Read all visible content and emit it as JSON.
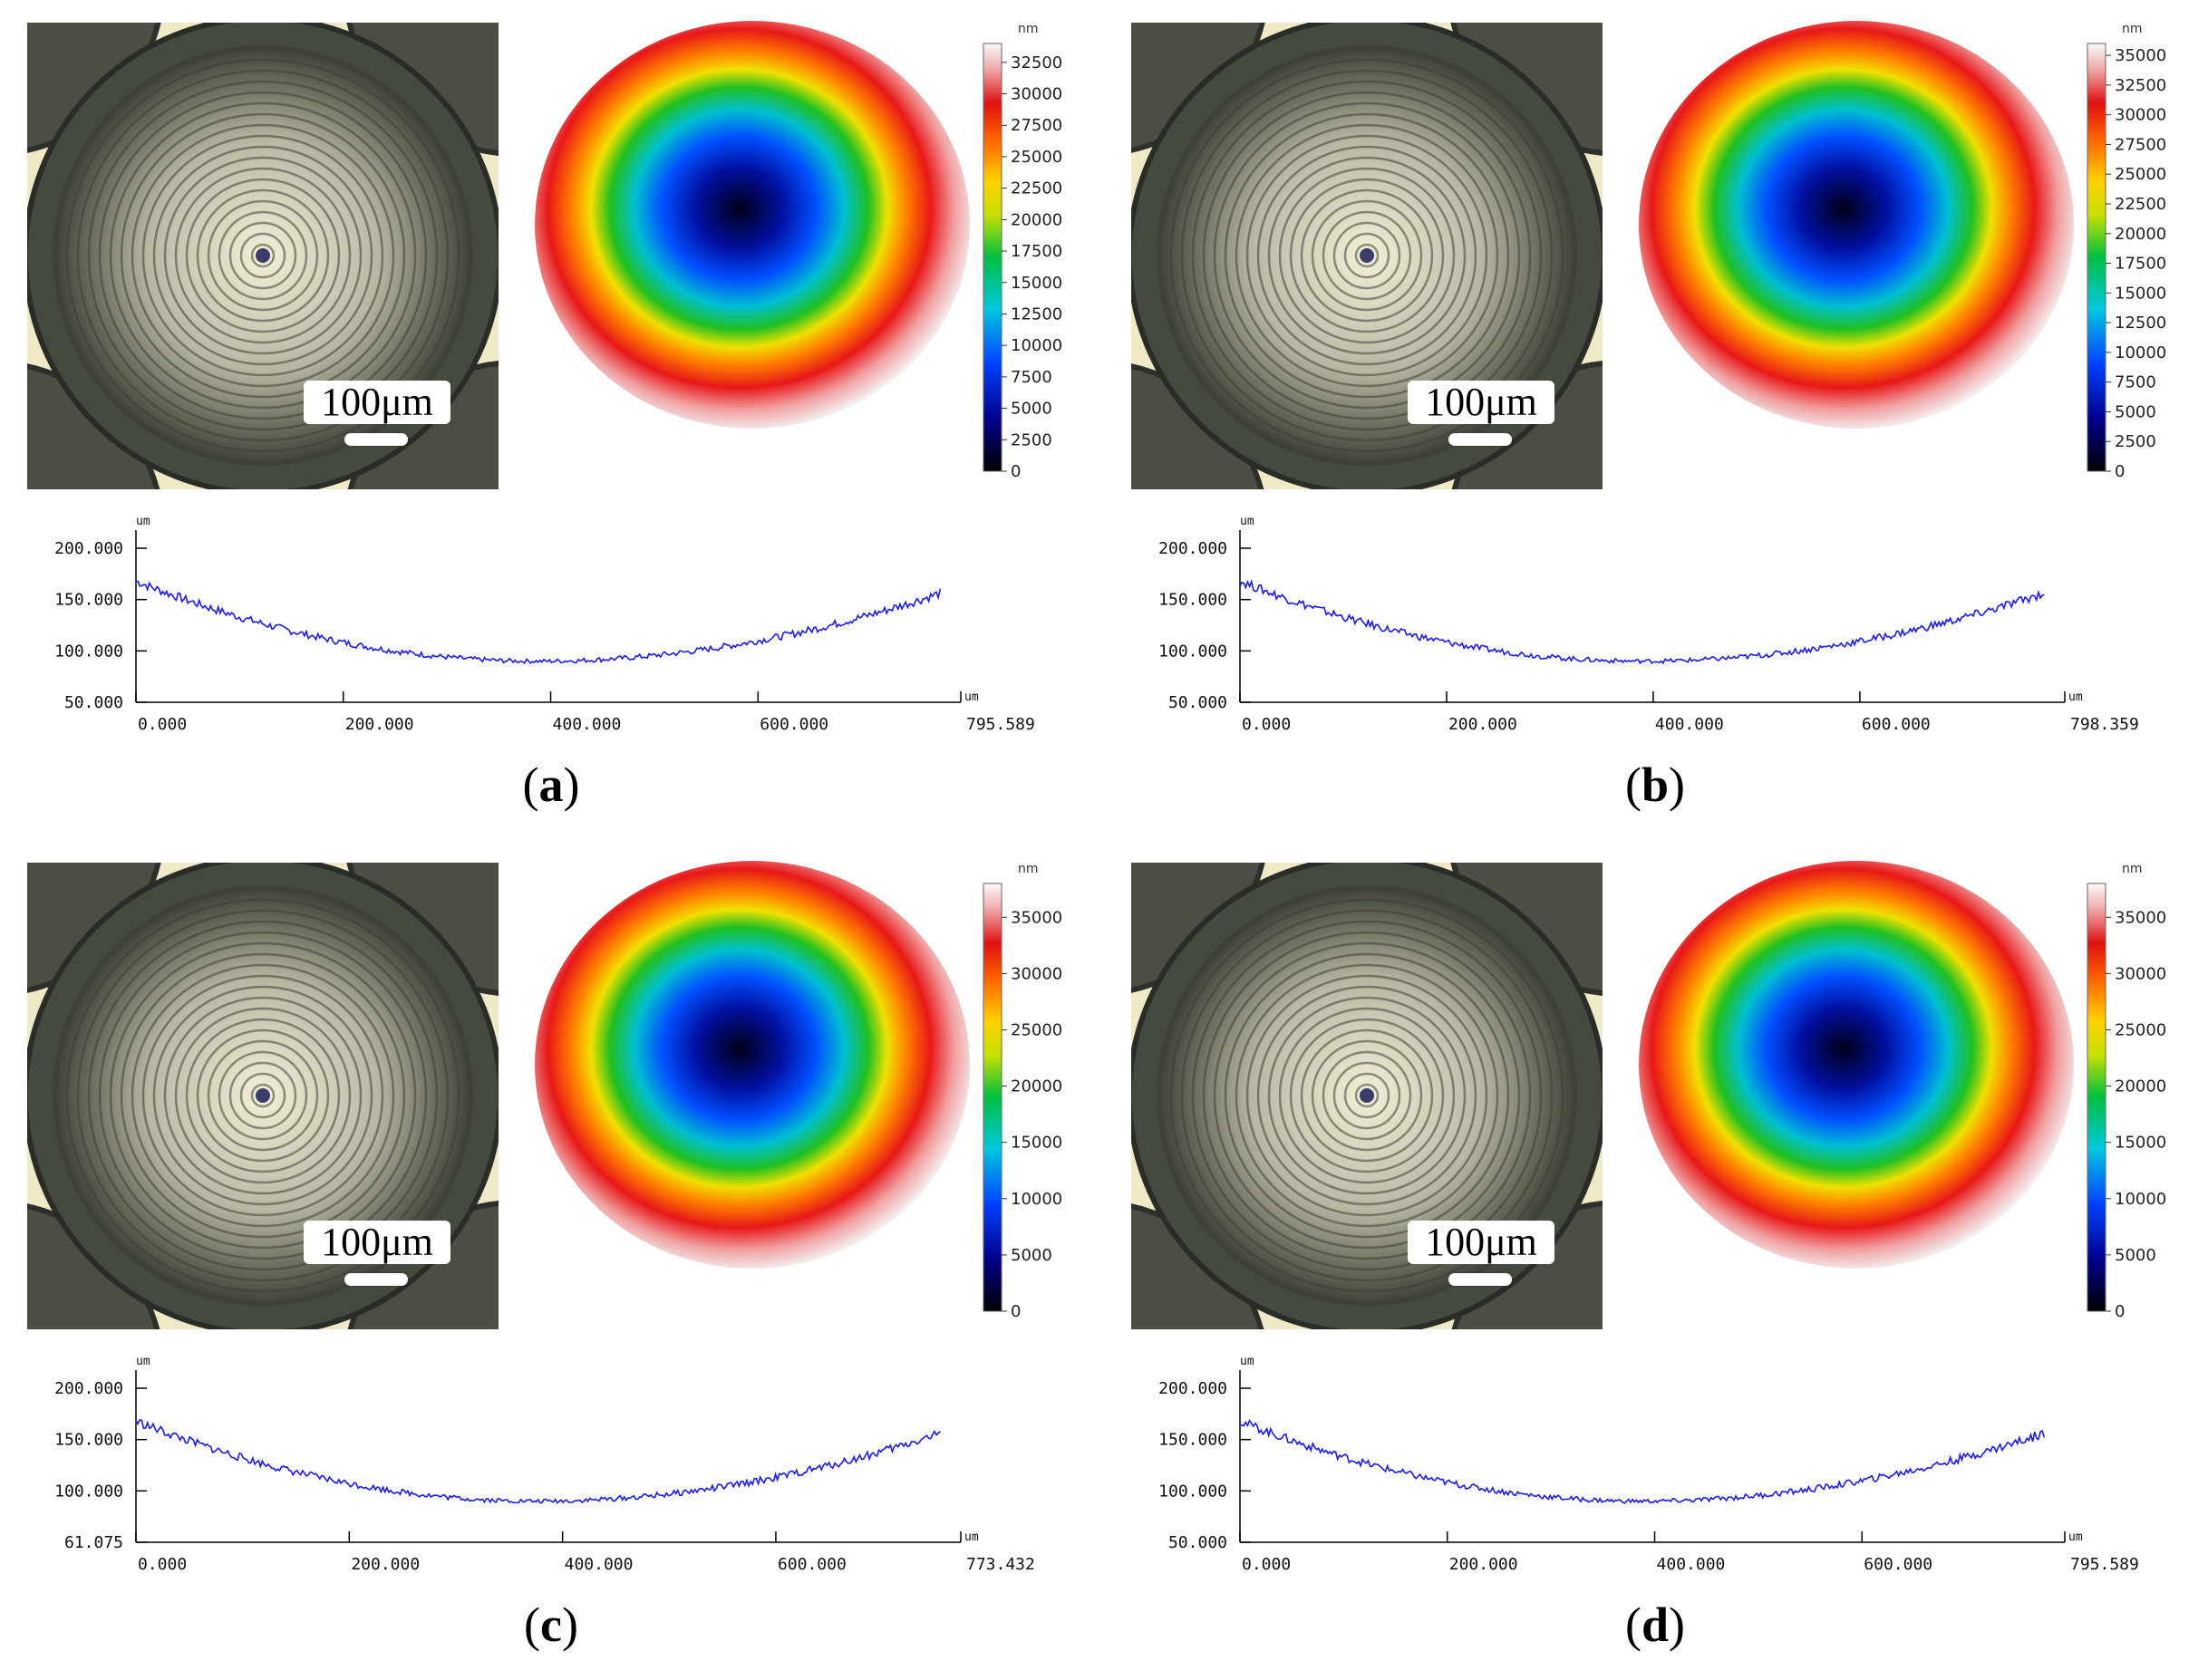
{
  "panels": [
    {
      "label": "a",
      "scale_label": "100μm",
      "colorbar": {
        "unit": "nm",
        "min": 0,
        "max": 34000,
        "ticks": [
          "0",
          "2500",
          "5000",
          "7500",
          "10000",
          "12500",
          "15000",
          "17500",
          "20000",
          "22500",
          "25000",
          "27500",
          "30000",
          "32500"
        ]
      },
      "profile": {
        "y_unit": "um",
        "x_unit": "um",
        "y_ticks": [
          "50.000",
          "100.000",
          "150.000",
          "200.000"
        ],
        "x_ticks": [
          "0.000",
          "200.000",
          "400.000",
          "600.000"
        ],
        "x_end": "795.589"
      }
    },
    {
      "label": "b",
      "scale_label": "100μm",
      "colorbar": {
        "unit": "nm",
        "min": 0,
        "max": 36000,
        "ticks": [
          "0",
          "2500",
          "5000",
          "7500",
          "10000",
          "12500",
          "15000",
          "17500",
          "20000",
          "22500",
          "25000",
          "27500",
          "30000",
          "32500",
          "35000"
        ]
      },
      "profile": {
        "y_unit": "um",
        "x_unit": "um",
        "y_ticks": [
          "50.000",
          "100.000",
          "150.000",
          "200.000"
        ],
        "x_ticks": [
          "0.000",
          "200.000",
          "400.000",
          "600.000"
        ],
        "x_end": "798.359"
      }
    },
    {
      "label": "c",
      "scale_label": "100μm",
      "colorbar": {
        "unit": "nm",
        "min": 0,
        "max": 38000,
        "ticks": [
          "0",
          "5000",
          "10000",
          "15000",
          "20000",
          "25000",
          "30000",
          "35000"
        ]
      },
      "profile": {
        "y_unit": "um",
        "x_unit": "um",
        "y_ticks": [
          "61.075",
          "100.000",
          "150.000",
          "200.000"
        ],
        "x_ticks": [
          "0.000",
          "200.000",
          "400.000",
          "600.000"
        ],
        "x_end": "773.432"
      }
    },
    {
      "label": "d",
      "scale_label": "100μm",
      "colorbar": {
        "unit": "nm",
        "min": 0,
        "max": 38000,
        "ticks": [
          "0",
          "5000",
          "10000",
          "15000",
          "20000",
          "25000",
          "30000",
          "35000"
        ]
      },
      "profile": {
        "y_unit": "um",
        "x_unit": "um",
        "y_ticks": [
          "50.000",
          "100.000",
          "150.000",
          "200.000"
        ],
        "x_ticks": [
          "0.000",
          "200.000",
          "400.000",
          "600.000"
        ],
        "x_end": "795.589"
      }
    }
  ],
  "colors": {
    "profile_line": "#1a1aff",
    "axis": "#000000"
  }
}
